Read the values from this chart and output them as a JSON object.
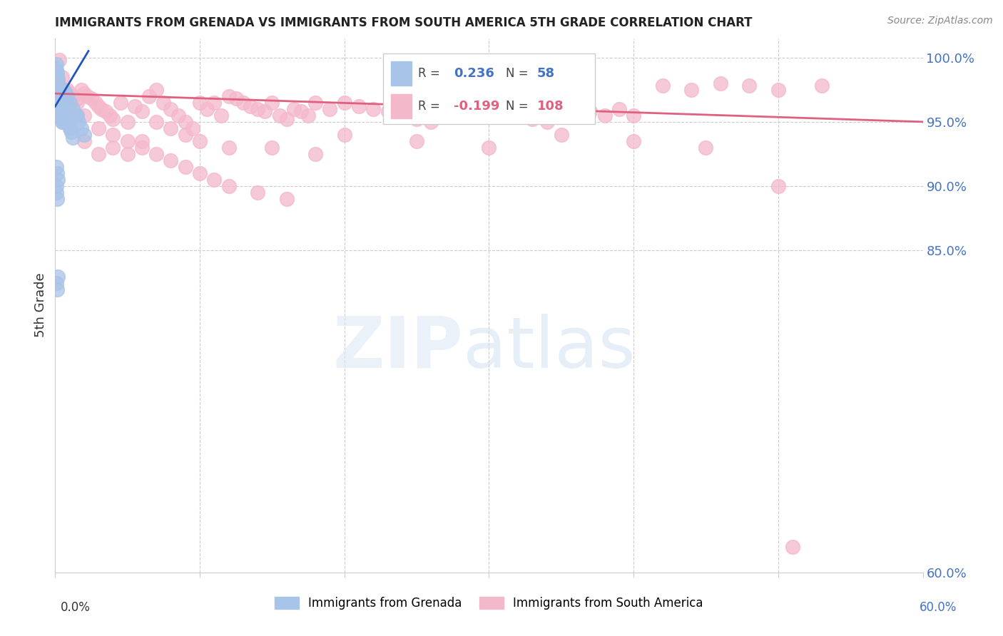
{
  "title": "IMMIGRANTS FROM GRENADA VS IMMIGRANTS FROM SOUTH AMERICA 5TH GRADE CORRELATION CHART",
  "source": "Source: ZipAtlas.com",
  "ylabel": "5th Grade",
  "blue_R": 0.236,
  "blue_N": 58,
  "pink_R": -0.199,
  "pink_N": 108,
  "blue_color": "#a8c4e8",
  "pink_color": "#f4b8cb",
  "blue_edge_color": "#a8c4e8",
  "pink_edge_color": "#f4b8cb",
  "blue_line_color": "#2255bb",
  "pink_line_color": "#e06080",
  "label_color": "#4472c4",
  "xlim": [
    0.0,
    60.0
  ],
  "ylim": [
    60.0,
    101.5
  ],
  "yticks": [
    60,
    85,
    90,
    95,
    100
  ],
  "ytick_labels": [
    "60.0%",
    "85.0%",
    "90.0%",
    "95.0%",
    "100.0%"
  ],
  "legend_blue_label": "Immigrants from Grenada",
  "legend_pink_label": "Immigrants from South America",
  "blue_scatter_x": [
    0.05,
    0.08,
    0.1,
    0.12,
    0.15,
    0.18,
    0.2,
    0.22,
    0.25,
    0.28,
    0.3,
    0.32,
    0.35,
    0.38,
    0.4,
    0.42,
    0.45,
    0.48,
    0.5,
    0.55,
    0.6,
    0.65,
    0.7,
    0.75,
    0.8,
    0.9,
    1.0,
    1.1,
    1.2,
    1.4,
    1.6,
    1.8,
    2.0,
    0.1,
    0.15,
    0.2,
    0.25,
    0.3,
    0.35,
    0.4,
    0.45,
    0.5,
    0.55,
    0.6,
    0.7,
    0.8,
    1.0,
    1.2,
    1.5,
    0.1,
    0.15,
    0.2,
    0.1,
    0.12,
    0.15,
    0.18,
    0.08,
    0.1
  ],
  "blue_scatter_y": [
    99.2,
    99.5,
    99.0,
    98.8,
    98.5,
    98.3,
    98.0,
    97.8,
    97.5,
    97.2,
    97.0,
    96.8,
    96.5,
    96.3,
    96.0,
    95.8,
    95.5,
    95.2,
    95.0,
    96.5,
    96.2,
    96.0,
    95.8,
    95.5,
    95.2,
    94.8,
    94.5,
    94.2,
    93.8,
    95.5,
    95.0,
    94.5,
    94.0,
    97.2,
    97.0,
    96.8,
    96.5,
    96.2,
    96.0,
    95.8,
    95.5,
    95.2,
    95.0,
    97.5,
    97.2,
    97.0,
    96.5,
    96.0,
    95.5,
    89.5,
    89.0,
    83.0,
    82.5,
    82.0,
    91.0,
    90.5,
    90.0,
    91.5
  ],
  "pink_scatter_x": [
    0.3,
    0.5,
    0.8,
    1.0,
    1.2,
    1.5,
    1.8,
    2.0,
    2.2,
    2.5,
    2.8,
    3.0,
    3.2,
    3.5,
    3.8,
    4.0,
    4.5,
    5.0,
    5.5,
    6.0,
    6.5,
    7.0,
    7.5,
    8.0,
    8.5,
    9.0,
    9.5,
    10.0,
    10.5,
    11.0,
    11.5,
    12.0,
    12.5,
    13.0,
    13.5,
    14.0,
    14.5,
    15.0,
    15.5,
    16.0,
    16.5,
    17.0,
    17.5,
    18.0,
    19.0,
    20.0,
    21.0,
    22.0,
    23.0,
    24.0,
    25.0,
    26.0,
    27.0,
    28.0,
    29.0,
    30.0,
    31.0,
    32.0,
    33.0,
    34.0,
    35.0,
    36.0,
    37.0,
    38.0,
    39.0,
    40.0,
    42.0,
    44.0,
    46.0,
    48.0,
    50.0,
    53.0,
    1.0,
    2.0,
    3.0,
    4.0,
    5.0,
    6.0,
    7.0,
    8.0,
    9.0,
    10.0,
    12.0,
    15.0,
    18.0,
    20.0,
    25.0,
    30.0,
    35.0,
    40.0,
    45.0,
    50.0,
    0.5,
    1.0,
    1.5,
    2.0,
    3.0,
    4.0,
    5.0,
    6.0,
    7.0,
    8.0,
    9.0,
    10.0,
    11.0,
    12.0,
    14.0,
    16.0
  ],
  "pink_scatter_y": [
    99.8,
    98.5,
    97.5,
    97.2,
    97.0,
    96.8,
    97.5,
    97.2,
    97.0,
    96.8,
    96.5,
    96.2,
    96.0,
    95.8,
    95.5,
    95.2,
    96.5,
    95.0,
    96.2,
    95.8,
    97.0,
    97.5,
    96.5,
    96.0,
    95.5,
    95.0,
    94.5,
    96.5,
    96.0,
    96.5,
    95.5,
    97.0,
    96.8,
    96.5,
    96.2,
    96.0,
    95.8,
    96.5,
    95.5,
    95.2,
    96.0,
    95.8,
    95.5,
    96.5,
    96.0,
    96.5,
    96.2,
    96.0,
    95.8,
    95.5,
    95.2,
    95.0,
    96.0,
    95.8,
    95.5,
    96.0,
    95.8,
    95.5,
    95.2,
    95.0,
    96.5,
    96.0,
    95.8,
    95.5,
    96.0,
    95.5,
    97.8,
    97.5,
    98.0,
    97.8,
    97.5,
    97.8,
    94.5,
    93.5,
    92.5,
    93.0,
    92.5,
    93.5,
    95.0,
    94.5,
    94.0,
    93.5,
    93.0,
    93.0,
    92.5,
    94.0,
    93.5,
    93.0,
    94.0,
    93.5,
    93.0,
    90.0,
    96.5,
    97.0,
    96.5,
    95.5,
    94.5,
    94.0,
    93.5,
    93.0,
    92.5,
    92.0,
    91.5,
    91.0,
    90.5,
    90.0,
    89.5,
    89.0
  ],
  "pink_outlier_x": [
    51.0
  ],
  "pink_outlier_y": [
    62.0
  ],
  "blue_trendline_x": [
    0.0,
    2.3
  ],
  "blue_trendline_y": [
    96.2,
    100.5
  ],
  "pink_trendline_x": [
    0.0,
    60.0
  ],
  "pink_trendline_y": [
    97.2,
    95.0
  ]
}
